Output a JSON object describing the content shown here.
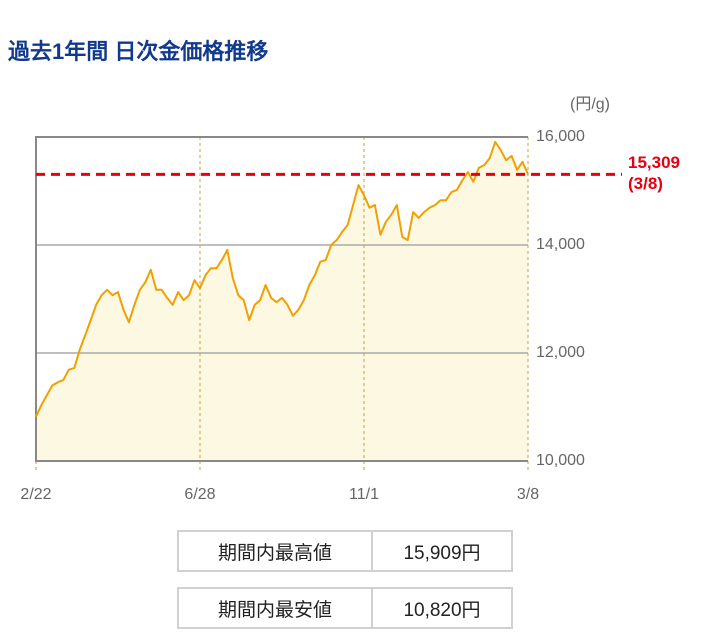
{
  "chart_data": {
    "type": "line",
    "title": "過去1年間 日次金価格推移",
    "y_label": "(円/g)",
    "categories": [
      "2/22",
      null,
      null,
      null,
      null,
      null,
      null,
      null,
      null,
      null,
      null,
      null,
      null,
      null,
      null,
      null,
      null,
      null,
      null,
      null,
      null,
      null,
      null,
      null,
      null,
      null,
      null,
      null,
      null,
      null,
      "6/28",
      null,
      null,
      null,
      null,
      null,
      null,
      null,
      null,
      null,
      null,
      null,
      null,
      null,
      null,
      null,
      null,
      null,
      null,
      null,
      null,
      null,
      null,
      null,
      null,
      null,
      null,
      null,
      null,
      null,
      "11/1",
      null,
      null,
      null,
      null,
      null,
      null,
      null,
      null,
      null,
      null,
      null,
      null,
      null,
      null,
      null,
      null,
      null,
      null,
      null,
      null,
      null,
      null,
      null,
      null,
      null,
      null,
      null,
      null,
      null,
      "3/8"
    ],
    "series": [
      {
        "color": "#f0a000",
        "fill": "#fdf8e1",
        "values": [
          10820,
          11040,
          11220,
          11400,
          11460,
          11500,
          11690,
          11720,
          12060,
          12330,
          12610,
          12890,
          13070,
          13170,
          13070,
          13130,
          12800,
          12570,
          12890,
          13170,
          13310,
          13540,
          13170,
          13170,
          13020,
          12890,
          13130,
          12980,
          13070,
          13350,
          13200,
          13440,
          13570,
          13570,
          13720,
          13910,
          13390,
          13070,
          12980,
          12610,
          12890,
          12980,
          13260,
          13020,
          12940,
          13020,
          12890,
          12690,
          12800,
          12980,
          13260,
          13440,
          13690,
          13720,
          14000,
          14090,
          14240,
          14370,
          14740,
          15110,
          14920,
          14690,
          14740,
          14190,
          14430,
          14560,
          14740,
          14150,
          14090,
          14610,
          14500,
          14610,
          14690,
          14740,
          14830,
          14830,
          14980,
          15020,
          15200,
          15350,
          15170,
          15430,
          15480,
          15610,
          15909,
          15760,
          15570,
          15650,
          15390,
          15540,
          15309
        ]
      }
    ],
    "ylim": [
      10000,
      16000
    ],
    "yticks": [
      {
        "value": 10000,
        "label": "10,000"
      },
      {
        "value": 12000,
        "label": "12,000"
      },
      {
        "value": 14000,
        "label": "14,000"
      },
      {
        "value": 16000,
        "label": "16,000"
      }
    ],
    "grid": true,
    "reference_line": {
      "value": 15309,
      "label": "15,309",
      "note": "(3/8)",
      "color": "#e60012"
    }
  },
  "stats": [
    {
      "label": "期間内最高値",
      "value": "15,909円"
    },
    {
      "label": "期間内最安値",
      "value": "10,820円"
    }
  ]
}
